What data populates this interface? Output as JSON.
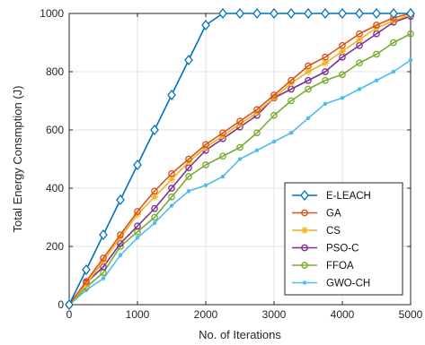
{
  "chart_data": {
    "type": "line",
    "title": "",
    "xlabel": "No. of Iterations",
    "ylabel": "Total Energy Consmption (J)",
    "xlim": [
      0,
      5000
    ],
    "ylim": [
      0,
      1000
    ],
    "xticks": [
      0,
      1000,
      2000,
      3000,
      4000,
      5000
    ],
    "yticks": [
      0,
      200,
      400,
      600,
      800,
      1000
    ],
    "grid": true,
    "legend_position": "bottom-right",
    "x": [
      0,
      250,
      500,
      750,
      1000,
      1250,
      1500,
      1750,
      2000,
      2250,
      2500,
      2750,
      3000,
      3250,
      3500,
      3750,
      4000,
      4250,
      4500,
      4750,
      5000
    ],
    "series": [
      {
        "name": "E-LEACH",
        "color": "#0072BD",
        "marker": "diamond",
        "values": [
          0,
          120,
          240,
          360,
          480,
          600,
          720,
          840,
          960,
          1000,
          1000,
          1000,
          1000,
          1000,
          1000,
          1000,
          1000,
          1000,
          1000,
          1000,
          1000
        ]
      },
      {
        "name": "GA",
        "color": "#D95319",
        "marker": "circle",
        "values": [
          0,
          80,
          160,
          240,
          320,
          390,
          450,
          500,
          550,
          590,
          630,
          670,
          720,
          770,
          820,
          850,
          890,
          930,
          960,
          985,
          1000
        ]
      },
      {
        "name": "CS",
        "color": "#EDB120",
        "marker": "star",
        "values": [
          0,
          70,
          150,
          230,
          310,
          370,
          430,
          490,
          540,
          580,
          620,
          660,
          710,
          760,
          800,
          830,
          870,
          910,
          950,
          975,
          995
        ]
      },
      {
        "name": "PSO-C",
        "color": "#7E2F8E",
        "marker": "circle",
        "values": [
          0,
          75,
          130,
          210,
          270,
          330,
          400,
          470,
          530,
          570,
          610,
          650,
          710,
          740,
          770,
          800,
          850,
          890,
          930,
          970,
          990
        ]
      },
      {
        "name": "FFOA",
        "color": "#77AC30",
        "marker": "circle",
        "values": [
          0,
          60,
          110,
          200,
          250,
          300,
          370,
          440,
          480,
          510,
          540,
          590,
          650,
          700,
          740,
          770,
          790,
          830,
          860,
          900,
          930
        ]
      },
      {
        "name": "GWO-CH",
        "color": "#4DBEEE",
        "marker": "point",
        "values": [
          0,
          50,
          90,
          170,
          230,
          280,
          340,
          390,
          410,
          440,
          500,
          530,
          560,
          590,
          640,
          690,
          710,
          740,
          770,
          800,
          840
        ]
      }
    ]
  }
}
